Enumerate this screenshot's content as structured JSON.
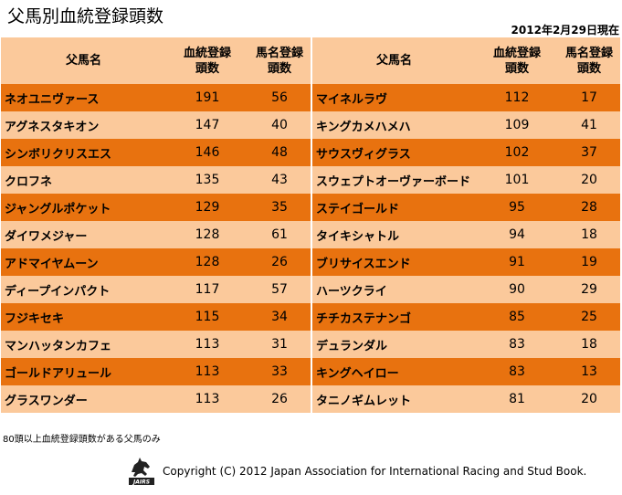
{
  "title": "父馬別血統登録頭数",
  "date": "2012年2月29日現在",
  "headers": {
    "sire": "父馬名",
    "registered_line1": "血統登録",
    "registered_line2": "頭数",
    "named_line1": "馬名登録",
    "named_line2": "頭数"
  },
  "rows": [
    {
      "left": {
        "name": "ネオユニヴァース",
        "reg": "191",
        "named": "56"
      },
      "right": {
        "name": "マイネルラヴ",
        "reg": "112",
        "named": "17"
      }
    },
    {
      "left": {
        "name": "アグネスタキオン",
        "reg": "147",
        "named": "40"
      },
      "right": {
        "name": "キングカメハメハ",
        "reg": "109",
        "named": "41"
      }
    },
    {
      "left": {
        "name": "シンボリクリスエス",
        "reg": "146",
        "named": "48"
      },
      "right": {
        "name": "サウスヴィグラス",
        "reg": "102",
        "named": "37"
      }
    },
    {
      "left": {
        "name": "クロフネ",
        "reg": "135",
        "named": "43"
      },
      "right": {
        "name": "スウェプトオーヴァーボード",
        "reg": "101",
        "named": "20"
      }
    },
    {
      "left": {
        "name": "ジャングルポケット",
        "reg": "129",
        "named": "35"
      },
      "right": {
        "name": "ステイゴールド",
        "reg": "95",
        "named": "28"
      }
    },
    {
      "left": {
        "name": "ダイワメジャー",
        "reg": "128",
        "named": "61"
      },
      "right": {
        "name": "タイキシャトル",
        "reg": "94",
        "named": "18"
      }
    },
    {
      "left": {
        "name": "アドマイヤムーン",
        "reg": "128",
        "named": "26"
      },
      "right": {
        "name": "ブリサイスエンド",
        "reg": "91",
        "named": "19"
      }
    },
    {
      "left": {
        "name": "ディープインパクト",
        "reg": "117",
        "named": "57"
      },
      "right": {
        "name": "ハーツクライ",
        "reg": "90",
        "named": "29"
      }
    },
    {
      "left": {
        "name": "フジキセキ",
        "reg": "115",
        "named": "34"
      },
      "right": {
        "name": "チチカステナンゴ",
        "reg": "85",
        "named": "25"
      }
    },
    {
      "left": {
        "name": "マンハッタンカフェ",
        "reg": "113",
        "named": "31"
      },
      "right": {
        "name": "デュランダル",
        "reg": "83",
        "named": "18"
      }
    },
    {
      "left": {
        "name": "ゴールドアリュール",
        "reg": "113",
        "named": "33"
      },
      "right": {
        "name": "キングヘイロー",
        "reg": "83",
        "named": "13"
      }
    },
    {
      "left": {
        "name": "グラスワンダー",
        "reg": "113",
        "named": "26"
      },
      "right": {
        "name": "タニノギムレット",
        "reg": "81",
        "named": "20"
      }
    }
  ],
  "footnote": "80頭以上血統登録頭数がある父馬のみ",
  "logo_text": "JAIRS",
  "copyright": "Copyright (C) 2012 Japan Association for International Racing and Stud Book.",
  "colors": {
    "dark_row": "#e8720f",
    "light_row": "#fbc99b"
  },
  "icons": {
    "logo": "horse-logo-icon"
  }
}
